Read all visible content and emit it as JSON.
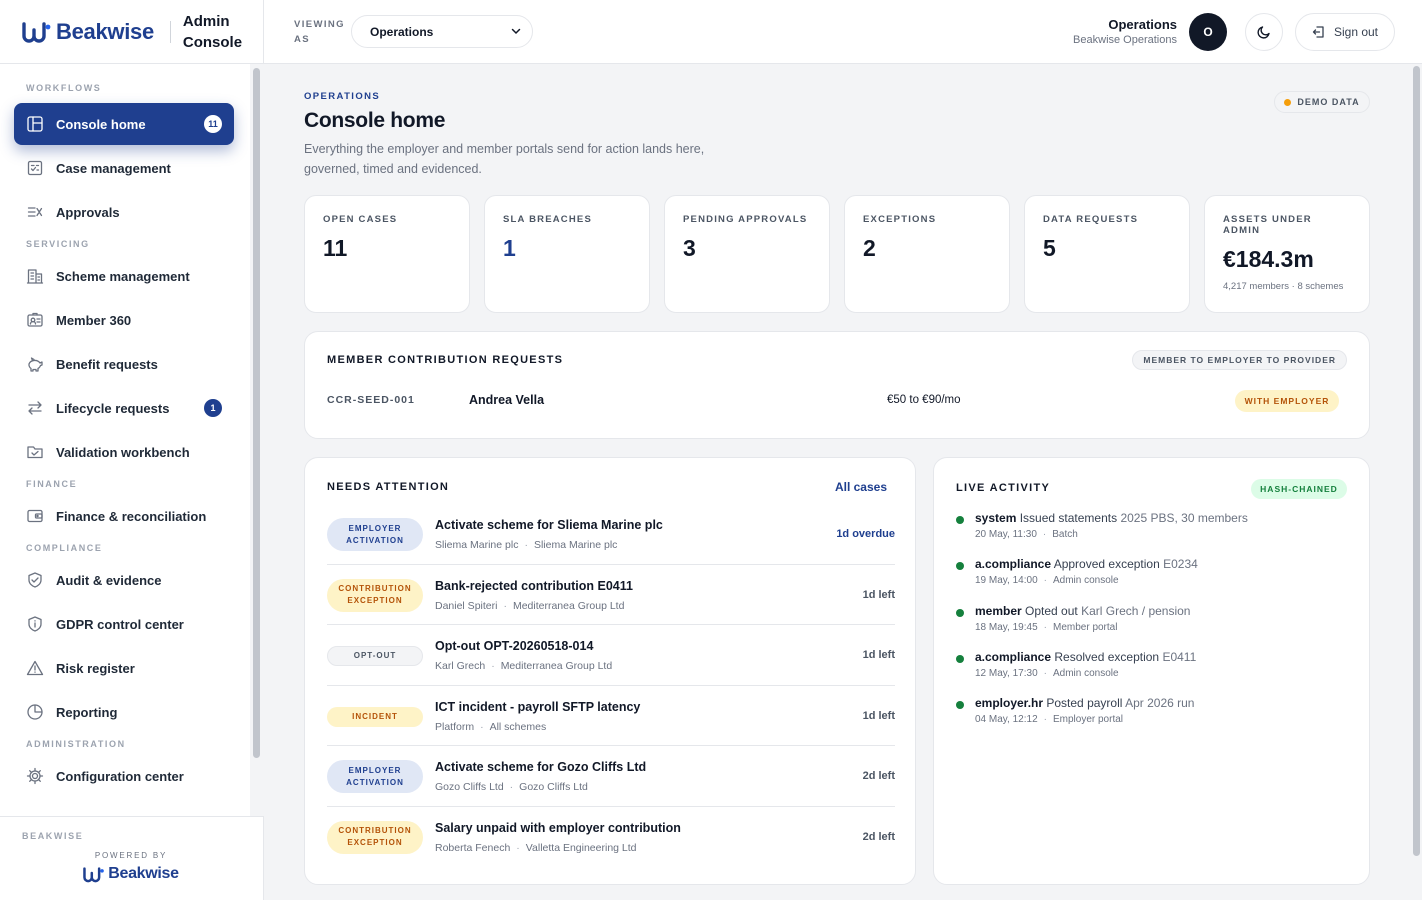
{
  "brand": {
    "name": "Beakwise",
    "console_title": "Admin Console"
  },
  "sidebar": {
    "sections": [
      {
        "label": "WORKFLOWS",
        "items": [
          {
            "label": "Console home",
            "icon": "layout-icon",
            "badge": "11",
            "active": true
          },
          {
            "label": "Case management",
            "icon": "clipboard-icon"
          },
          {
            "label": "Approvals",
            "icon": "checklist-icon"
          }
        ]
      },
      {
        "label": "SERVICING",
        "items": [
          {
            "label": "Scheme management",
            "icon": "building-icon"
          },
          {
            "label": "Member 360",
            "icon": "id-card-icon"
          },
          {
            "label": "Benefit requests",
            "icon": "piggy-bank-icon"
          },
          {
            "label": "Lifecycle requests",
            "icon": "swap-icon",
            "badge": "1"
          },
          {
            "label": "Validation workbench",
            "icon": "folder-check-icon"
          }
        ]
      },
      {
        "label": "FINANCE",
        "items": [
          {
            "label": "Finance & reconciliation",
            "icon": "wallet-icon"
          }
        ]
      },
      {
        "label": "COMPLIANCE",
        "items": [
          {
            "label": "Audit & evidence",
            "icon": "shield-check-icon"
          },
          {
            "label": "GDPR control center",
            "icon": "shield-info-icon"
          },
          {
            "label": "Risk register",
            "icon": "warning-icon"
          },
          {
            "label": "Reporting",
            "icon": "pie-chart-icon"
          }
        ]
      },
      {
        "label": "ADMINISTRATION",
        "items": [
          {
            "label": "Configuration center",
            "icon": "gear-icon"
          }
        ]
      }
    ],
    "footer": {
      "label": "BEAKWISE",
      "powered_by": "POWERED BY",
      "brand": "Beakwise"
    }
  },
  "topbar": {
    "viewing_label": "VIEWING AS",
    "viewing_value": "Operations",
    "user_name": "Operations",
    "user_org": "Beakwise Operations",
    "avatar_initial": "O",
    "sign_out": "Sign out"
  },
  "page": {
    "eyebrow": "OPERATIONS",
    "title": "Console home",
    "subtitle": "Everything the employer and member portals send for action lands here, governed, timed and evidenced.",
    "demo_badge": "DEMO DATA"
  },
  "stats": [
    {
      "label": "OPEN CASES",
      "value": "11"
    },
    {
      "label": "SLA BREACHES",
      "value": "1",
      "accent": true
    },
    {
      "label": "PENDING APPROVALS",
      "value": "3"
    },
    {
      "label": "EXCEPTIONS",
      "value": "2"
    },
    {
      "label": "DATA REQUESTS",
      "value": "5"
    },
    {
      "label": "ASSETS UNDER ADMIN",
      "value": "€184.3m",
      "foot": "4,217 members · 8 schemes"
    }
  ],
  "contribution_requests": {
    "title": "MEMBER CONTRIBUTION REQUESTS",
    "route": "MEMBER TO EMPLOYER TO PROVIDER",
    "row": {
      "id": "CCR-SEED-001",
      "name": "Andrea Vella",
      "amount": "€50 to €90/mo",
      "status": "WITH EMPLOYER"
    }
  },
  "needs_attention": {
    "title": "NEEDS ATTENTION",
    "link": "All cases",
    "rows": [
      {
        "tag": "EMPLOYER ACTIVATION",
        "tag_style": "blue",
        "title": "Activate scheme for Sliema Marine plc",
        "party": "Sliema Marine plc",
        "org": "Sliema Marine plc",
        "due": "1d overdue",
        "overdue": true
      },
      {
        "tag": "CONTRIBUTION EXCEPTION",
        "tag_style": "amber",
        "title": "Bank-rejected contribution E0411",
        "party": "Daniel Spiteri",
        "org": "Mediterranea Group Ltd",
        "due": "1d left"
      },
      {
        "tag": "OPT-OUT",
        "tag_style": "gray",
        "title": "Opt-out OPT-20260518-014",
        "party": "Karl Grech",
        "org": "Mediterranea Group Ltd",
        "due": "1d left"
      },
      {
        "tag": "INCIDENT",
        "tag_style": "amber",
        "title": "ICT incident - payroll SFTP latency",
        "party": "Platform",
        "org": "All schemes",
        "due": "1d left"
      },
      {
        "tag": "EMPLOYER ACTIVATION",
        "tag_style": "blue",
        "title": "Activate scheme for Gozo Cliffs Ltd",
        "party": "Gozo Cliffs Ltd",
        "org": "Gozo Cliffs Ltd",
        "due": "2d left"
      },
      {
        "tag": "CONTRIBUTION EXCEPTION",
        "tag_style": "amber",
        "title": "Salary unpaid with employer contribution",
        "party": "Roberta Fenech",
        "org": "Valletta Engineering Ltd",
        "due": "2d left"
      }
    ]
  },
  "live_activity": {
    "title": "LIVE ACTIVITY",
    "badge": "HASH-CHAINED",
    "items": [
      {
        "actor": "system",
        "verb": "Issued statements",
        "object": "2025 PBS, 30 members",
        "time": "20 May, 11:30",
        "source": "Batch"
      },
      {
        "actor": "a.compliance",
        "verb": "Approved exception",
        "object": "E0234",
        "time": "19 May, 14:00",
        "source": "Admin console"
      },
      {
        "actor": "member",
        "verb": "Opted out",
        "object": "Karl Grech / pension",
        "time": "18 May, 19:45",
        "source": "Member portal"
      },
      {
        "actor": "a.compliance",
        "verb": "Resolved exception",
        "object": "E0411",
        "time": "12 May, 17:30",
        "source": "Admin console"
      },
      {
        "actor": "employer.hr",
        "verb": "Posted payroll",
        "object": "Apr 2026 run",
        "time": "04 May, 12:12",
        "source": "Employer portal"
      }
    ]
  }
}
